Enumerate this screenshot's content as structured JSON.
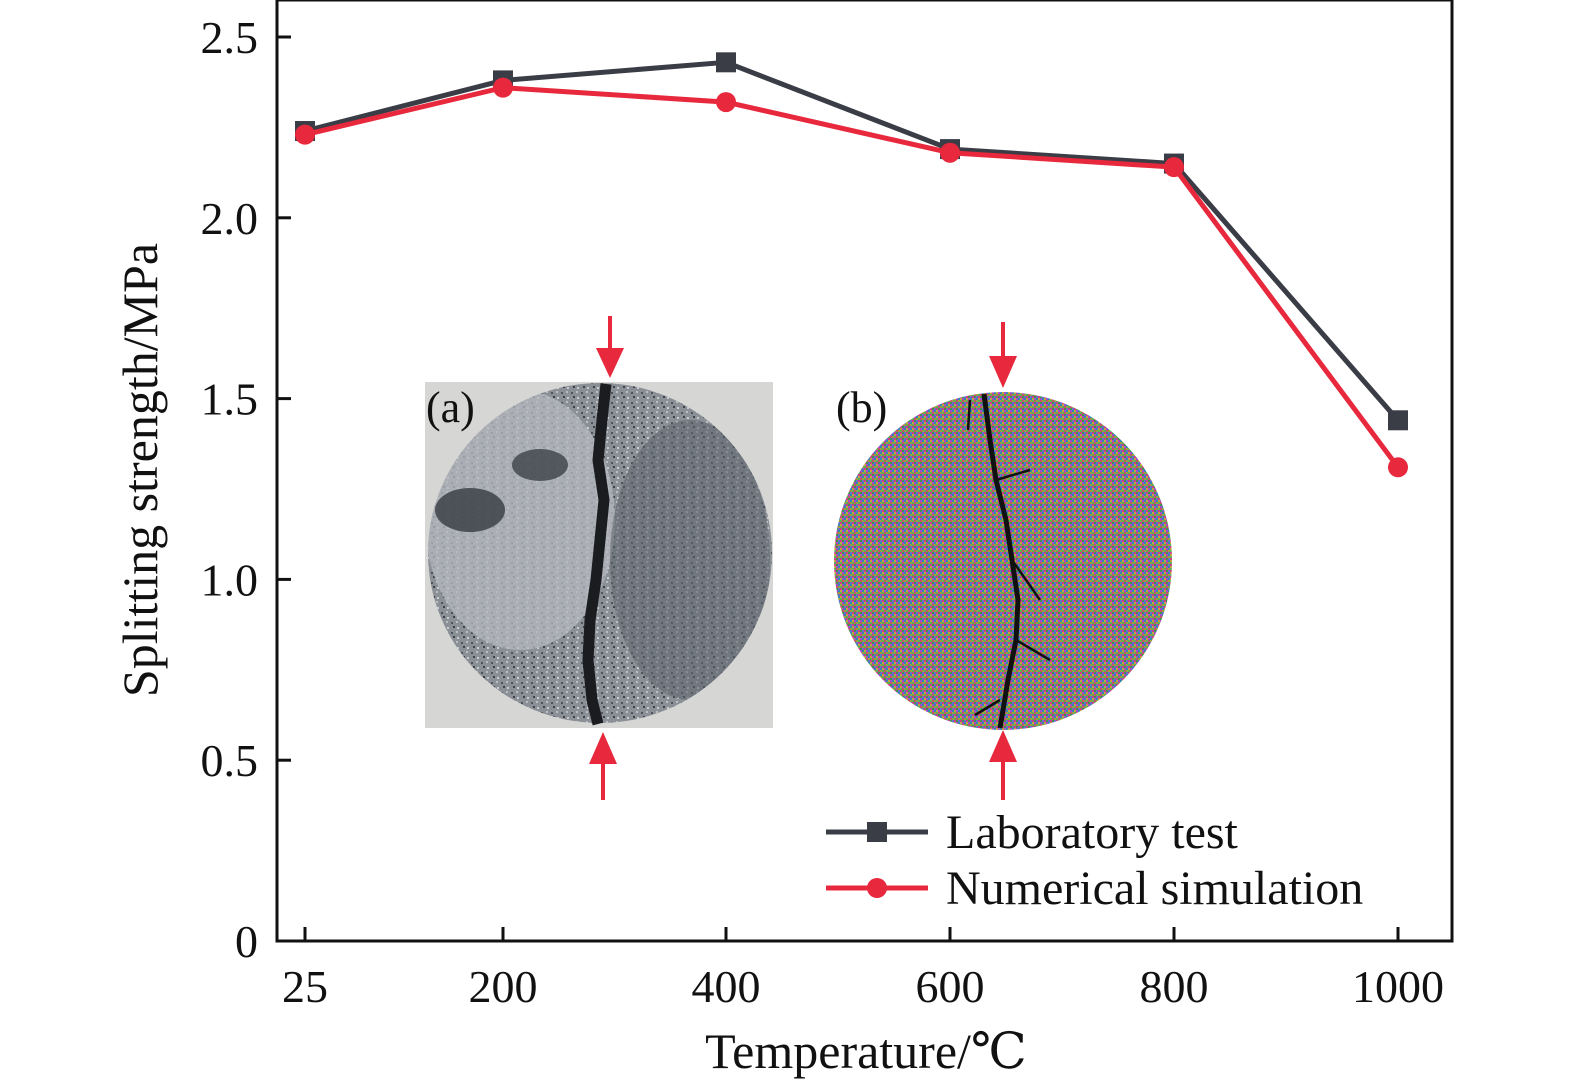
{
  "chart_data": {
    "type": "line",
    "xlabel": "Temperature/℃",
    "ylabel": "Splitting strength/MPa",
    "categories": [
      "25",
      "200",
      "400",
      "600",
      "800",
      "1000"
    ],
    "x": [
      25,
      200,
      400,
      600,
      800,
      1000
    ],
    "y_ticks": [
      "0",
      "0.5",
      "1.0",
      "1.5",
      "2.0",
      "2.5"
    ],
    "ylim": [
      0,
      2.6
    ],
    "grid": false,
    "legend_position": "bottom-right",
    "series": [
      {
        "name": "Laboratory test",
        "marker": "square",
        "color": "#3a3d46",
        "values": [
          2.24,
          2.38,
          2.43,
          2.19,
          2.15,
          1.44
        ]
      },
      {
        "name": "Numerical simulation",
        "marker": "circle",
        "color": "#e8283c",
        "values": [
          2.23,
          2.36,
          2.32,
          2.18,
          2.14,
          1.31
        ]
      }
    ],
    "insets": [
      {
        "label": "(a)"
      },
      {
        "label": "(b)"
      }
    ],
    "arrow_color": "#e8283c"
  }
}
